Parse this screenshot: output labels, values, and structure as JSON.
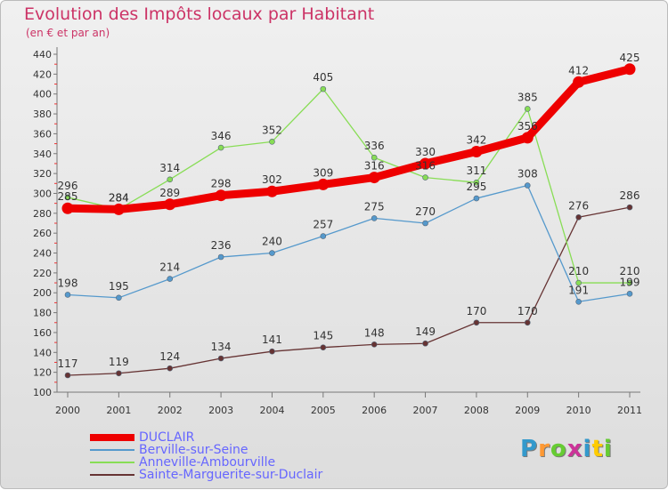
{
  "title": "Evolution des Impôts locaux par Habitant",
  "subtitle": "(en € et par an)",
  "brand": {
    "text": "Proxiti",
    "letter_colors": [
      "#3399cc",
      "#ff9933",
      "#66cc33",
      "#cc3399",
      "#3399cc",
      "#ffcc00",
      "#66cc33"
    ]
  },
  "chart_data": {
    "type": "line",
    "x": [
      "2000",
      "2001",
      "2002",
      "2003",
      "2004",
      "2005",
      "2006",
      "2007",
      "2008",
      "2009",
      "2010",
      "2011"
    ],
    "ylim": [
      100,
      440
    ],
    "yticks": [
      100,
      120,
      140,
      160,
      180,
      200,
      220,
      240,
      260,
      280,
      300,
      320,
      340,
      360,
      380,
      400,
      420,
      440
    ],
    "grid": false,
    "legend_position": "bottom-left",
    "series": [
      {
        "name": "DUCLAIR",
        "color": "#ee0000",
        "values": [
          285,
          284,
          289,
          298,
          302,
          309,
          316,
          330,
          342,
          356,
          412,
          425
        ]
      },
      {
        "name": "Berville-sur-Seine",
        "color": "#5599cc",
        "values": [
          198,
          195,
          214,
          236,
          240,
          257,
          275,
          270,
          295,
          308,
          191,
          199
        ]
      },
      {
        "name": "Anneville-Ambourville",
        "color": "#88dd55",
        "values": [
          296,
          284,
          314,
          346,
          352,
          405,
          336,
          316,
          311,
          385,
          210,
          210
        ]
      },
      {
        "name": "Sainte-Marguerite-sur-Duclair",
        "color": "#663333",
        "values": [
          117,
          119,
          124,
          134,
          141,
          145,
          148,
          149,
          170,
          170,
          276,
          286
        ]
      }
    ]
  }
}
